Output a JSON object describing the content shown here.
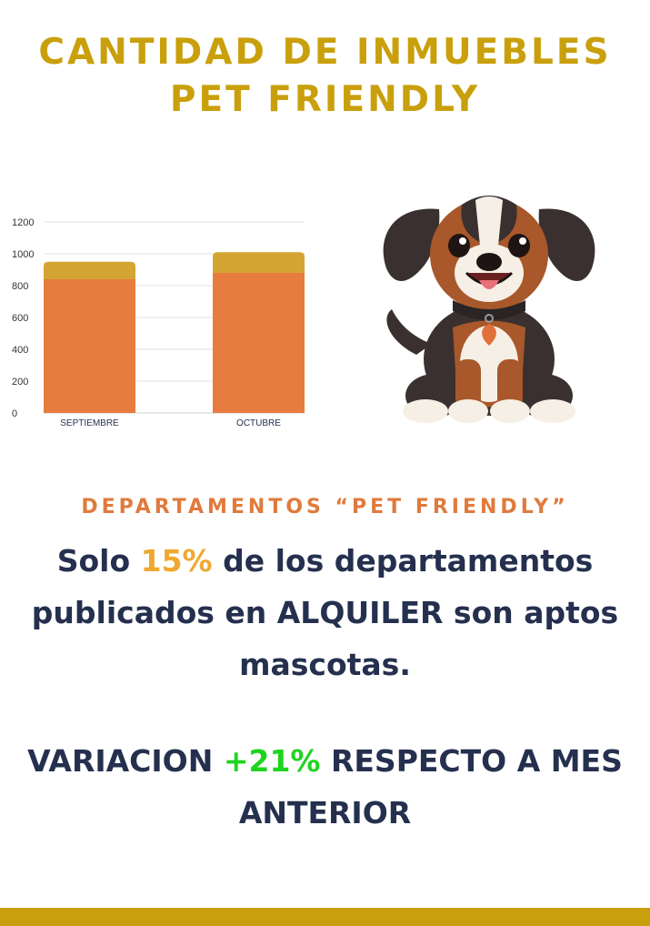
{
  "title_line1": "CANTIDAD DE INMUEBLES",
  "title_line2": "PET FRIENDLY",
  "chart_data": {
    "type": "bar",
    "stacked": true,
    "categories": [
      "SEPTIEMBRE",
      "OCTUBRE"
    ],
    "series": [
      {
        "values": [
          840,
          880
        ],
        "color": "#e67c3d"
      },
      {
        "values": [
          110,
          130
        ],
        "color": "#d4a532"
      }
    ],
    "ylim": [
      0,
      1200
    ],
    "yticks": [
      0,
      200,
      400,
      600,
      800,
      1000,
      1200
    ],
    "grid": true
  },
  "dog_icon": "puppy-illustration",
  "subtitle": "DEPARTAMENTOS “PET FRIENDLY”",
  "statement": {
    "prefix": "Solo ",
    "highlight": "15%",
    "suffix": " de los departamentos publicados en ALQUILER son aptos mascotas."
  },
  "variation": {
    "prefix": "VARIACION ",
    "highlight": "+21%",
    "suffix": " RESPECTO A MES ANTERIOR"
  },
  "colors": {
    "gold": "#c9a00c",
    "orange": "#e07a3c",
    "navy": "#25304f",
    "green": "#1fd41f",
    "highlight_orange": "#f0a830"
  }
}
